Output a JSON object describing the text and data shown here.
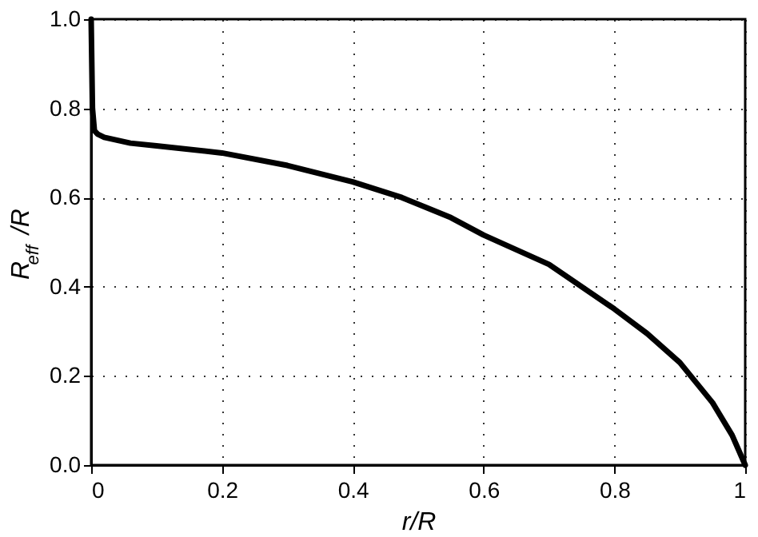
{
  "chart_data": {
    "type": "line",
    "xlabel": "r/R",
    "ylabel": "R$_{eff}$/R",
    "x": [
      0,
      0.002,
      0.005,
      0.01,
      0.02,
      0.06,
      0.1,
      0.2,
      0.3,
      0.4,
      0.475,
      0.55,
      0.6,
      0.7,
      0.8,
      0.85,
      0.9,
      0.95,
      0.98,
      1.0
    ],
    "series": [
      {
        "color": "#000000",
        "values": [
          1.0,
          0.8,
          0.75,
          0.742,
          0.735,
          0.722,
          0.716,
          0.7,
          0.672,
          0.635,
          0.6,
          0.555,
          0.516,
          0.45,
          0.35,
          0.295,
          0.23,
          0.14,
          0.067,
          0.0
        ]
      }
    ],
    "xlim": [
      0,
      1
    ],
    "ylim": [
      0,
      1
    ],
    "xticks": [
      0,
      0.2,
      0.4,
      0.6,
      0.8,
      1
    ],
    "yticks": [
      {
        "value": 0,
        "label": "0.0"
      },
      0.2,
      0.4,
      0.6,
      0.8,
      {
        "value": 1,
        "label": "1.0"
      }
    ],
    "grid": true,
    "line_style": "solid",
    "marker": "none"
  }
}
